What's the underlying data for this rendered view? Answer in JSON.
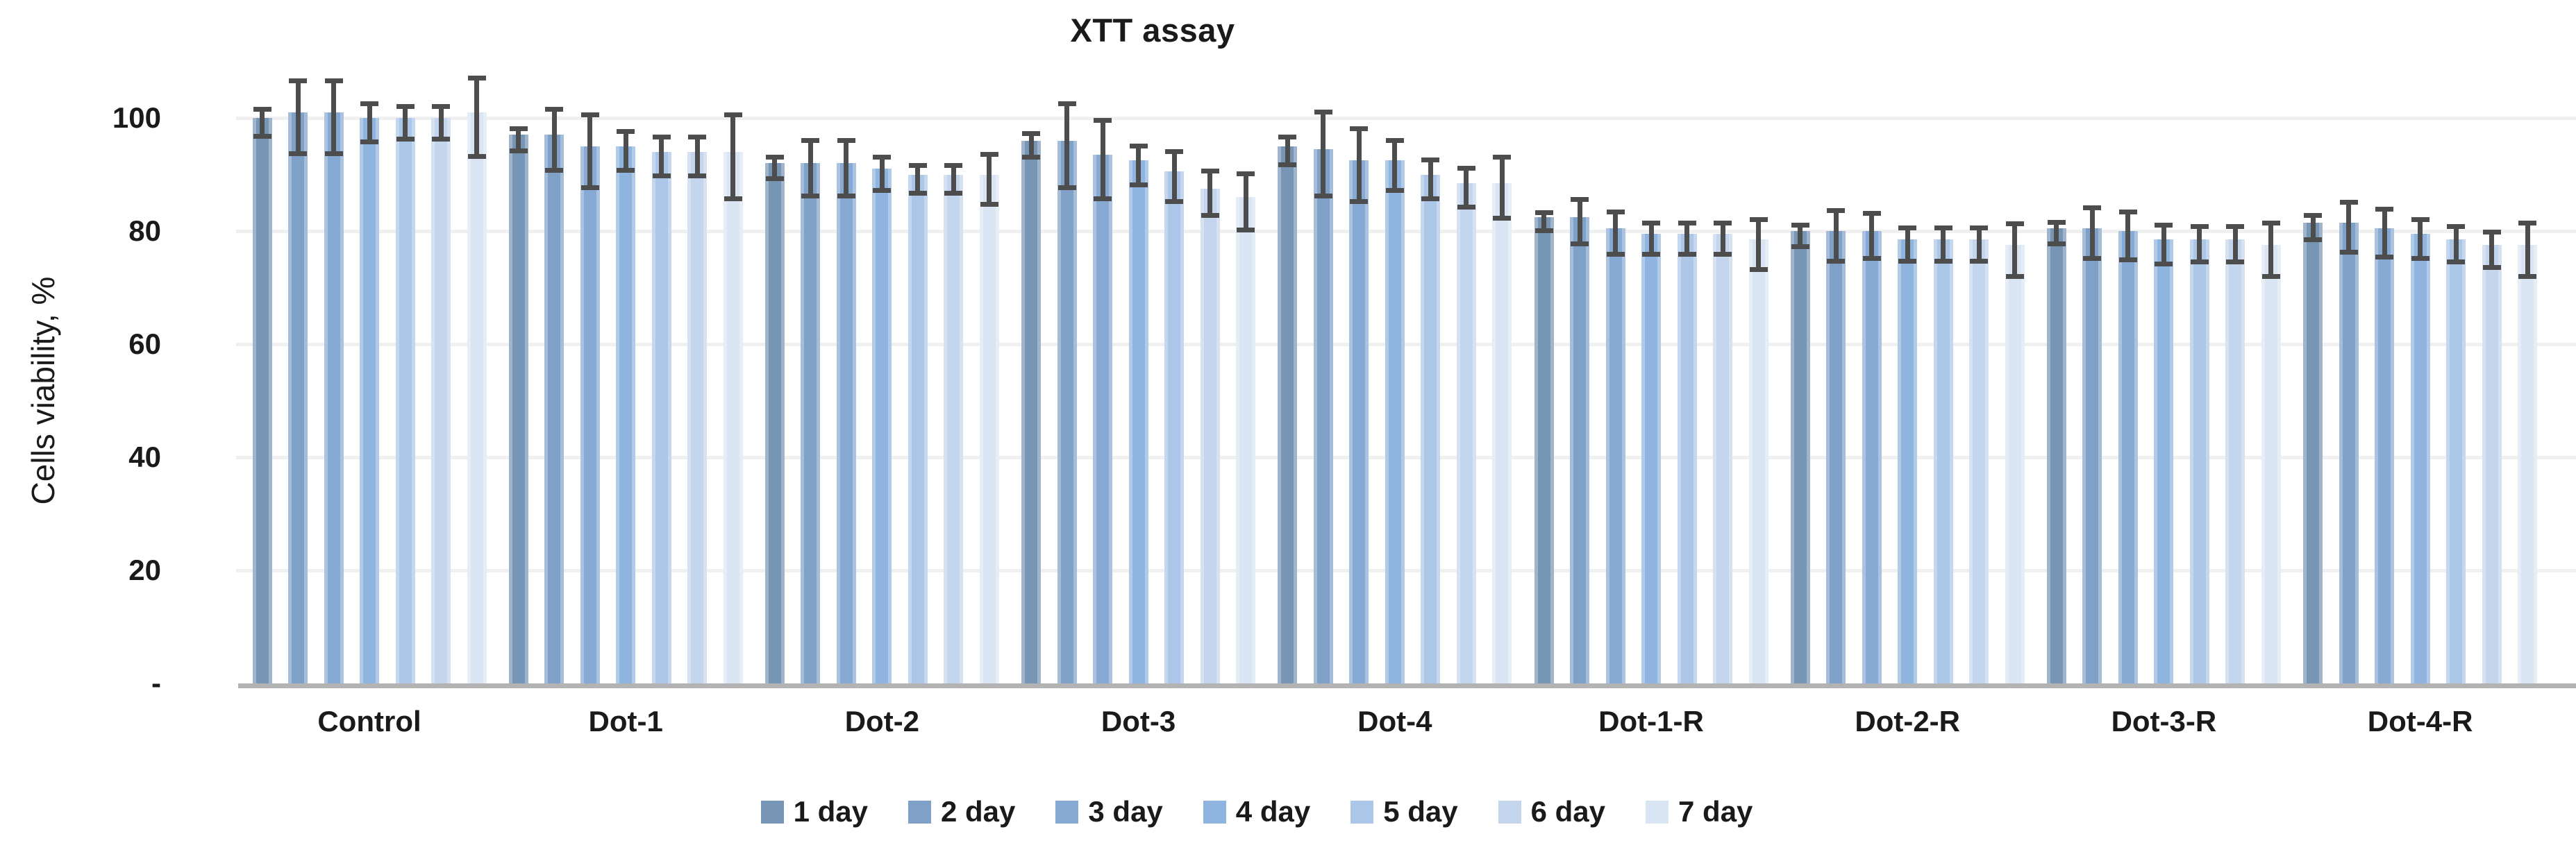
{
  "title": "XTT assay",
  "y_axis": {
    "label": "Cells viability, %",
    "tick_labels": [
      "100",
      "80",
      "60",
      "40",
      "20",
      "-"
    ],
    "tick_values": [
      100,
      80,
      60,
      40,
      20,
      0
    ]
  },
  "x_axis": {
    "categories": [
      "Control",
      "Dot-1",
      "Dot-2",
      "Dot-3",
      "Dot-4",
      "Dot-1-R",
      "Dot-2-R",
      "Dot-3-R",
      "Dot-4-R"
    ]
  },
  "legend": {
    "items": [
      "1 day",
      "2 day",
      "3 day",
      "4 day",
      "5 day",
      "6 day",
      "7 day"
    ]
  },
  "colors": {
    "series": [
      "#7796B5",
      "#7FA1C7",
      "#87AAD4",
      "#8FB4DF",
      "#ACC6E7",
      "#C4D6ED",
      "#DAE5F3"
    ],
    "error_bar": "#4D4D4D",
    "gridline": "#F0F0F0",
    "axis_line": "#B3B3B3",
    "text": "#1A1A1A"
  },
  "chart_data": {
    "type": "bar",
    "title": "XTT assay",
    "xlabel": "",
    "ylabel": "Cells viability, %",
    "ylim": [
      0,
      100
    ],
    "yticks": [
      0,
      20,
      40,
      60,
      80,
      100
    ],
    "grid": true,
    "legend_position": "bottom",
    "error_bars": true,
    "categories": [
      "Control",
      "Dot-1",
      "Dot-2",
      "Dot-3",
      "Dot-4",
      "Dot-1-R",
      "Dot-2-R",
      "Dot-3-R",
      "Dot-4-R"
    ],
    "series": [
      {
        "name": "1 day",
        "color": "#7796B5",
        "values": [
          100,
          97,
          92,
          96,
          95,
          82.5,
          80,
          80.5,
          81.5
        ],
        "errors": [
          2,
          1.5,
          1.5,
          1.7,
          2,
          1.2,
          1.5,
          1.5,
          1.7
        ]
      },
      {
        "name": "2 day",
        "color": "#7FA1C7",
        "values": [
          101,
          97,
          92,
          96,
          94.5,
          82.5,
          80,
          80.5,
          81.5
        ],
        "errors": [
          6,
          5,
          4.5,
          7,
          7,
          3.5,
          4,
          4,
          4
        ]
      },
      {
        "name": "3 day",
        "color": "#87AAD4",
        "values": [
          101,
          95,
          92,
          93.5,
          92.5,
          80.5,
          80,
          80,
          80.5
        ],
        "errors": [
          6,
          6,
          4.5,
          6.5,
          6,
          3.3,
          3.5,
          3.8,
          3.8
        ]
      },
      {
        "name": "4 day",
        "color": "#8FB4DF",
        "values": [
          100,
          95,
          91,
          92.5,
          92.5,
          79.5,
          78.5,
          78.5,
          79.5
        ],
        "errors": [
          3,
          3,
          2.5,
          3,
          4,
          2.3,
          2.5,
          3,
          3
        ]
      },
      {
        "name": "5 day",
        "color": "#ACC6E7",
        "values": [
          100,
          94,
          90,
          90.5,
          90,
          79.5,
          78.5,
          78.5,
          78.5
        ],
        "errors": [
          2.5,
          3,
          2,
          4,
          3,
          2.3,
          2.5,
          2.7,
          2.7
        ]
      },
      {
        "name": "6 day",
        "color": "#C4D6ED",
        "values": [
          100,
          94,
          90,
          87.5,
          88.5,
          79.5,
          78.5,
          78.5,
          77.5
        ],
        "errors": [
          2.5,
          3,
          2,
          3.5,
          3,
          2.3,
          2.5,
          2.7,
          2.7
        ]
      },
      {
        "name": "7 day",
        "color": "#DAE5F3",
        "values": [
          101,
          94,
          90,
          86,
          88.5,
          78.5,
          77.5,
          77.5,
          77.5
        ],
        "errors": [
          6.5,
          7,
          4,
          4.5,
          5,
          4,
          4.2,
          4.3,
          4.3
        ]
      }
    ]
  }
}
